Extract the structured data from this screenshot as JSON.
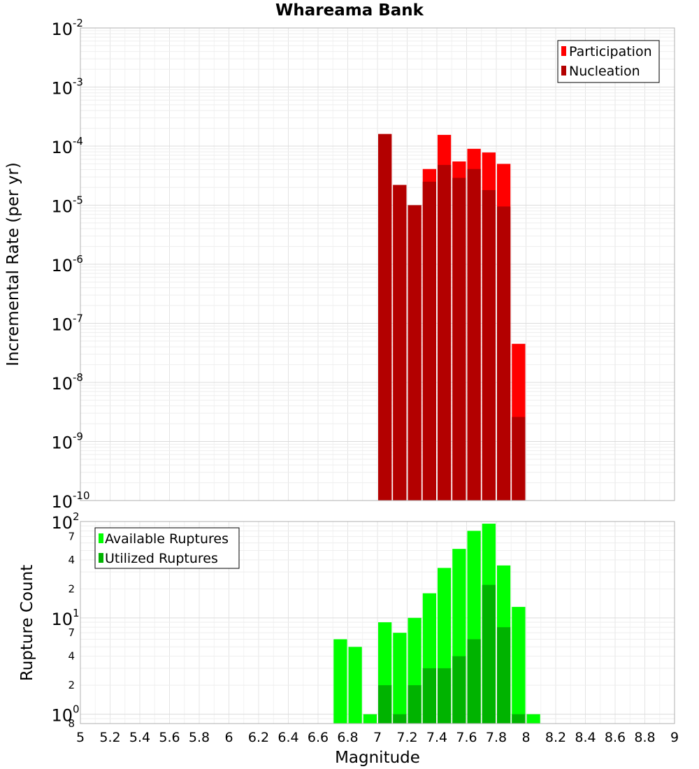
{
  "chart_data": [
    {
      "type": "bar",
      "title": "Whareama Bank",
      "ylabel": "Incremental Rate (per yr)",
      "xlabel": "",
      "yscale": "log",
      "ylim": [
        1e-10,
        0.01
      ],
      "xlim": [
        5,
        9
      ],
      "y_ticks": [
        {
          "base": "10",
          "exp": "-2"
        },
        {
          "base": "10",
          "exp": "-3"
        },
        {
          "base": "10",
          "exp": "-4"
        },
        {
          "base": "10",
          "exp": "-5"
        },
        {
          "base": "10",
          "exp": "-6"
        },
        {
          "base": "10",
          "exp": "-7"
        },
        {
          "base": "10",
          "exp": "-8"
        },
        {
          "base": "10",
          "exp": "-9"
        },
        {
          "base": "10",
          "exp": "-10"
        }
      ],
      "legend_position": "top-right",
      "bin_width": 0.1,
      "x": [
        7.05,
        7.15,
        7.25,
        7.35,
        7.45,
        7.55,
        7.65,
        7.75,
        7.85,
        7.95
      ],
      "series": [
        {
          "name": "Participation",
          "color": "#ff0000",
          "values": [
            0.00016,
            2.2e-05,
            1e-05,
            4.1e-05,
            0.000155,
            5.5e-05,
            9e-05,
            7.8e-05,
            5e-05,
            4.5e-08
          ]
        },
        {
          "name": "Nucleation",
          "color": "#b30000",
          "values": [
            0.00016,
            2.2e-05,
            1e-05,
            2.5e-05,
            4.8e-05,
            2.9e-05,
            4.1e-05,
            1.8e-05,
            9.5e-06,
            2.6e-09
          ]
        }
      ]
    },
    {
      "type": "bar",
      "ylabel": "Rupture Count",
      "xlabel": "Magnitude",
      "yscale": "log",
      "ylim": [
        0.8,
        100
      ],
      "xlim": [
        5,
        9
      ],
      "x_ticks": [
        "5",
        "5.2",
        "5.4",
        "5.6",
        "5.8",
        "6",
        "6.2",
        "6.4",
        "6.6",
        "6.8",
        "7",
        "7.2",
        "7.4",
        "7.6",
        "7.8",
        "8",
        "8.2",
        "8.4",
        "8.6",
        "8.8",
        "9"
      ],
      "y_major_ticks": [
        {
          "value": 100,
          "base": "10",
          "exp": "2"
        },
        {
          "value": 10,
          "base": "10",
          "exp": "1"
        },
        {
          "value": 1,
          "base": "10",
          "exp": "0"
        }
      ],
      "y_minor_ticks": [
        {
          "value": 70,
          "label": "7"
        },
        {
          "value": 40,
          "label": "4"
        },
        {
          "value": 20,
          "label": "2"
        },
        {
          "value": 7,
          "label": "7"
        },
        {
          "value": 4,
          "label": "4"
        },
        {
          "value": 2,
          "label": "2"
        },
        {
          "value": 0.8,
          "label": "8"
        }
      ],
      "legend_position": "top-left",
      "bin_width": 0.1,
      "series": [
        {
          "name": "Available Ruptures",
          "color": "#00ff00",
          "x": [
            6.75,
            6.85,
            6.95,
            7.05,
            7.15,
            7.25,
            7.35,
            7.45,
            7.55,
            7.65,
            7.75,
            7.85,
            7.95,
            8.05
          ],
          "values": [
            6,
            5,
            1,
            9,
            7,
            10,
            18,
            33,
            52,
            80,
            95,
            35,
            13,
            1
          ]
        },
        {
          "name": "Utilized Ruptures",
          "color": "#00b300",
          "x": [
            7.05,
            7.15,
            7.25,
            7.35,
            7.45,
            7.55,
            7.65,
            7.75,
            7.85,
            7.95
          ],
          "values": [
            2,
            1,
            2,
            3,
            3,
            4,
            6,
            22,
            8,
            1
          ]
        }
      ]
    }
  ]
}
